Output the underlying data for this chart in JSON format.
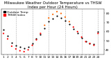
{
  "title": "Milwaukee Weather Outdoor Temperature vs THSW Index per Hour (24 Hours)",
  "background_color": "#ffffff",
  "grid_color": "#aaaaaa",
  "hours": [
    1,
    2,
    3,
    4,
    5,
    6,
    7,
    8,
    9,
    10,
    11,
    12,
    13,
    14,
    15,
    16,
    17,
    18,
    19,
    20,
    21,
    22,
    23,
    24
  ],
  "temp_values": [
    62,
    55,
    48,
    45,
    43,
    42,
    43,
    47,
    52,
    57,
    64,
    71,
    74,
    77,
    75,
    72,
    68,
    63,
    58,
    53,
    49,
    47,
    46,
    60
  ],
  "thsw_values": [
    58,
    52,
    44,
    41,
    39,
    38,
    40,
    45,
    51,
    58,
    67,
    75,
    79,
    82,
    80,
    76,
    71,
    65,
    60,
    54,
    49,
    47,
    45,
    58
  ],
  "ylim": [
    35,
    85
  ],
  "ytick_values": [
    40,
    50,
    60,
    70,
    80
  ],
  "temp_color": "#000000",
  "thsw_color_warm": "#ff6600",
  "thsw_color_cool": "#ff0000",
  "dot_size": 2.5,
  "title_fontsize": 4.0,
  "tick_fontsize": 3.2,
  "legend_fontsize": 3.2,
  "legend_label_temp": "Outdoor Temp",
  "legend_label_thsw": "THSW Index",
  "vgrid_positions": [
    4,
    8,
    12,
    16,
    20,
    24
  ],
  "xlim": [
    0.5,
    25.5
  ]
}
